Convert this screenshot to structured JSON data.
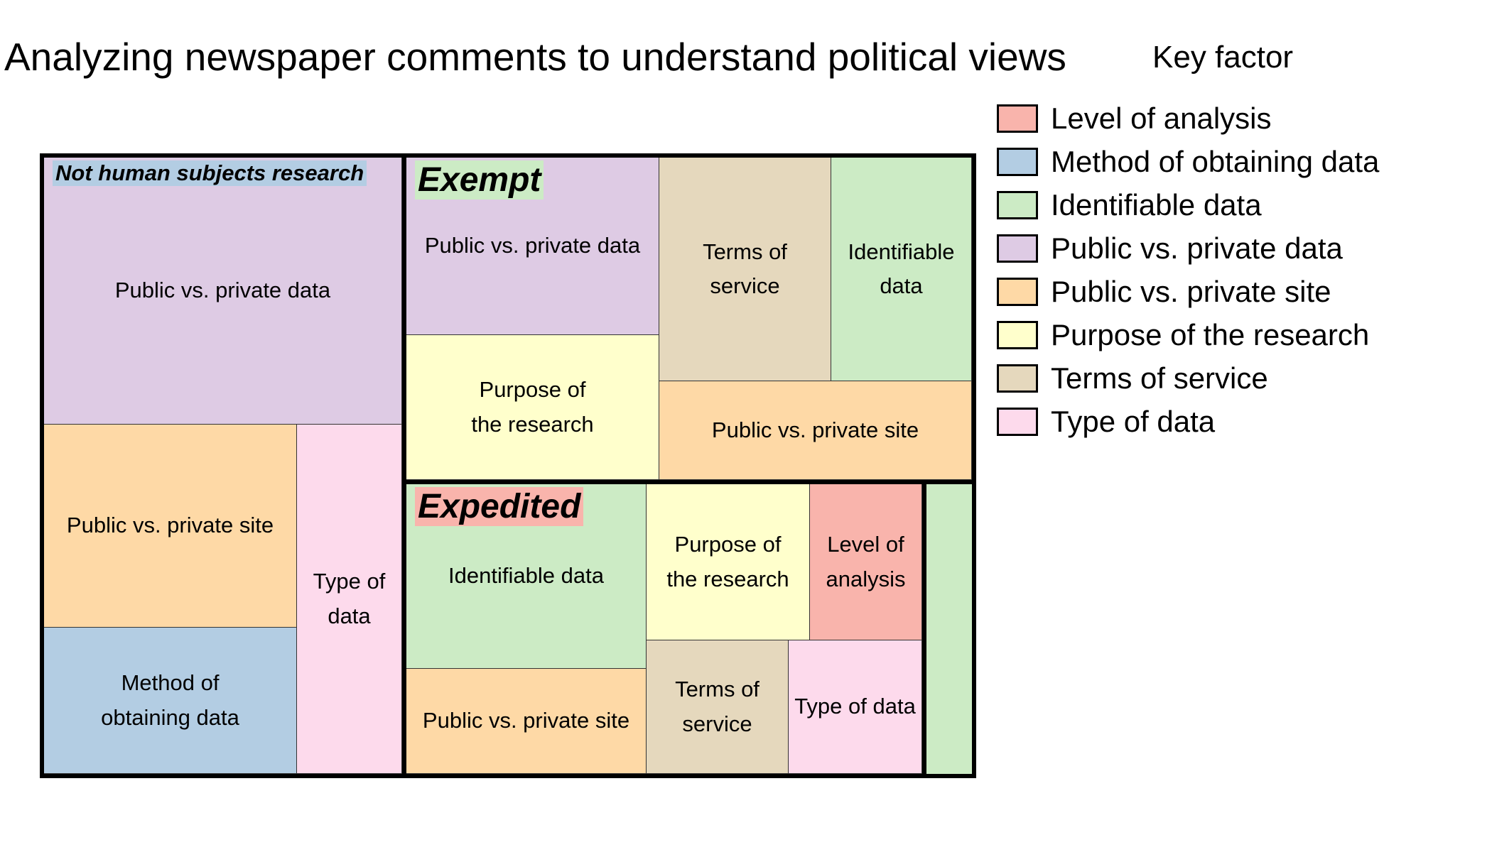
{
  "title": "Analyzing newspaper comments to understand political views",
  "legend": {
    "title": "Key factor",
    "items": [
      {
        "label": "Level of analysis",
        "color": "#f9b4ac"
      },
      {
        "label": "Method of obtaining data",
        "color": "#b3cde3"
      },
      {
        "label": "Identifiable data",
        "color": "#ccebc5"
      },
      {
        "label": "Public vs. private data",
        "color": "#decbe4"
      },
      {
        "label": "Public vs. private site",
        "color": "#fed9a6"
      },
      {
        "label": "Purpose of the research",
        "color": "#ffffcc"
      },
      {
        "label": "Terms of service",
        "color": "#e5d8bd"
      },
      {
        "label": "Type of data",
        "color": "#fddaec"
      }
    ]
  },
  "groups": [
    {
      "label": "Not human subjects research",
      "label_bg": "#b3cde3",
      "cells": [
        {
          "label": "Public vs. private data",
          "color": "#decbe4"
        },
        {
          "label": "Public vs. private site",
          "color": "#fed9a6"
        },
        {
          "label": "Method of\nobtaining data",
          "color": "#b3cde3"
        },
        {
          "label": "Type of\ndata",
          "color": "#fddaec"
        }
      ]
    },
    {
      "label": "Exempt",
      "label_bg": "#ccebc5",
      "cells": [
        {
          "label": "Public vs. private data",
          "color": "#decbe4"
        },
        {
          "label": "Purpose of\nthe research",
          "color": "#ffffcc"
        },
        {
          "label": "Terms of\nservice",
          "color": "#e5d8bd"
        },
        {
          "label": "Identifiable\ndata",
          "color": "#ccebc5"
        },
        {
          "label": "Public vs. private site",
          "color": "#fed9a6"
        }
      ]
    },
    {
      "label": "Expedited",
      "label_bg": "#f9b4ac",
      "cells": [
        {
          "label": "Identifiable data",
          "color": "#ccebc5"
        },
        {
          "label": "Public vs. private site",
          "color": "#fed9a6"
        },
        {
          "label": "Purpose of\nthe research",
          "color": "#ffffcc"
        },
        {
          "label": "Level of\nanalysis",
          "color": "#f9b4ac"
        },
        {
          "label": "Terms of\nservice",
          "color": "#e5d8bd"
        },
        {
          "label": "Type of data",
          "color": "#fddaec"
        }
      ]
    },
    {
      "label": "",
      "label_bg": "",
      "cells": [
        {
          "label": "",
          "color": "#ccebc5"
        }
      ]
    }
  ]
}
